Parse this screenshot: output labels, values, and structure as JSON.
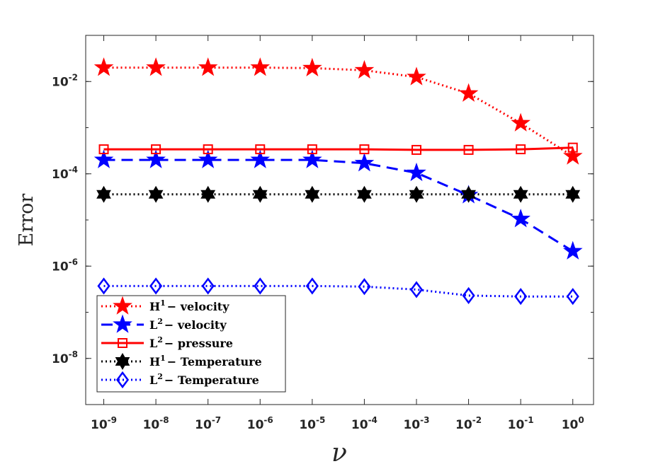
{
  "chart_data": {
    "type": "line",
    "title": "",
    "xscale": "log",
    "yscale": "log",
    "xlabel": "ν",
    "ylabel": "Error",
    "x": [
      1e-09,
      1e-08,
      1e-07,
      1e-06,
      1e-05,
      0.0001,
      0.001,
      0.01,
      0.1,
      1
    ],
    "xlim": [
      4.5e-10,
      2.5
    ],
    "ylim": [
      1e-09,
      0.1
    ],
    "x_ticks": [
      {
        "base": "10",
        "exp": "-9",
        "value": 1e-09
      },
      {
        "base": "10",
        "exp": "-8",
        "value": 1e-08
      },
      {
        "base": "10",
        "exp": "-7",
        "value": 1e-07
      },
      {
        "base": "10",
        "exp": "-6",
        "value": 1e-06
      },
      {
        "base": "10",
        "exp": "-5",
        "value": 1e-05
      },
      {
        "base": "10",
        "exp": "-4",
        "value": 0.0001
      },
      {
        "base": "10",
        "exp": "-3",
        "value": 0.001
      },
      {
        "base": "10",
        "exp": "-2",
        "value": 0.01
      },
      {
        "base": "10",
        "exp": "-1",
        "value": 0.1
      },
      {
        "base": "10",
        "exp": "0",
        "value": 1
      }
    ],
    "y_ticks": [
      {
        "base": "10",
        "exp": "-8",
        "value": 1e-08
      },
      {
        "base": "10",
        "exp": "-6",
        "value": 1e-06
      },
      {
        "base": "10",
        "exp": "-4",
        "value": 0.0001
      },
      {
        "base": "10",
        "exp": "-2",
        "value": 0.01
      }
    ],
    "grid": false,
    "legend_position": "bottom-left",
    "series": [
      {
        "name": "H1 velocity",
        "label_base": "H",
        "label_sup": "1",
        "label_rest": "− velocity",
        "color": "#ff0000",
        "dash": "dotted",
        "marker": "star5",
        "values": [
          0.02,
          0.02,
          0.02,
          0.02,
          0.0195,
          0.0175,
          0.0125,
          0.0055,
          0.00125,
          0.00024
        ]
      },
      {
        "name": "L2 velocity",
        "label_base": "L",
        "label_sup": "2",
        "label_rest": "− velocity",
        "color": "#0000ff",
        "dash": "dashed",
        "marker": "star5",
        "values": [
          0.0002,
          0.0002,
          0.0002,
          0.0002,
          0.0002,
          0.00017,
          0.000105,
          3.45e-05,
          1.05e-05,
          2.1e-06
        ]
      },
      {
        "name": "L2 pressure",
        "label_base": "L",
        "label_sup": "2",
        "label_rest": "− pressure",
        "color": "#ff0000",
        "dash": "solid",
        "marker": "square",
        "values": [
          0.00034,
          0.00034,
          0.00034,
          0.00034,
          0.00034,
          0.00034,
          0.00033,
          0.00033,
          0.00034,
          0.00037
        ]
      },
      {
        "name": "H1 Temperature",
        "label_base": "H",
        "label_sup": "1",
        "label_rest": "− Temperature",
        "color": "#000000",
        "dash": "dotted",
        "marker": "hexagram",
        "values": [
          3.6e-05,
          3.6e-05,
          3.6e-05,
          3.6e-05,
          3.6e-05,
          3.6e-05,
          3.6e-05,
          3.6e-05,
          3.6e-05,
          3.6e-05
        ]
      },
      {
        "name": "L2 Temperature",
        "label_base": "L",
        "label_sup": "2",
        "label_rest": "− Temperature",
        "color": "#0000ff",
        "dash": "dotted",
        "marker": "diamond",
        "values": [
          3.7e-07,
          3.7e-07,
          3.7e-07,
          3.7e-07,
          3.7e-07,
          3.6e-07,
          3.1e-07,
          2.3e-07,
          2.2e-07,
          2.2e-07
        ]
      }
    ]
  }
}
